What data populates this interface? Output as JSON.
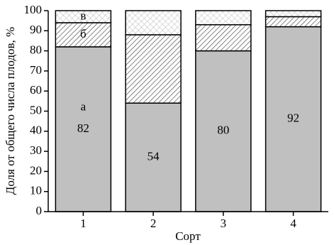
{
  "chart_data": {
    "type": "stacked_bar",
    "y_label": "Доля от общего числа плодов, %",
    "x_label": "Сорт",
    "categories": [
      "1",
      "2",
      "3",
      "4"
    ],
    "series": [
      {
        "name": "а",
        "color": "#c0c0c0",
        "values": [
          82,
          54,
          80,
          92
        ]
      },
      {
        "name": "б",
        "color": "#ffffff",
        "values": [
          12,
          34,
          13,
          5
        ]
      },
      {
        "name": "в",
        "color": "#ffffff",
        "values": [
          6,
          12,
          7,
          3
        ]
      }
    ],
    "ylim": [
      0,
      100
    ],
    "yticks": [
      0,
      10,
      20,
      30,
      40,
      50,
      60,
      70,
      80,
      90,
      100
    ]
  }
}
